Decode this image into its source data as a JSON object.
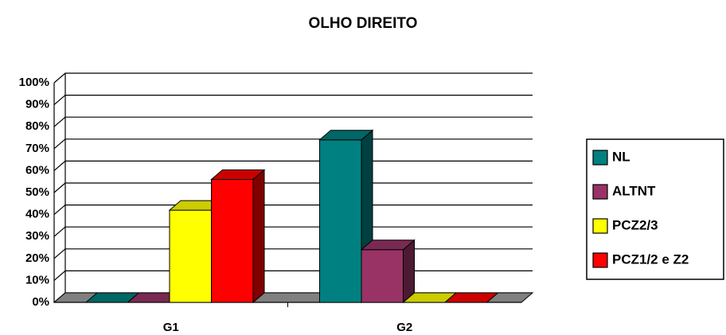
{
  "chart_data": {
    "type": "bar3d",
    "title": "OLHO DIREITO",
    "categories": [
      "G1",
      "G2"
    ],
    "series": [
      {
        "name": "NL",
        "color": "#008080",
        "values": [
          0,
          74
        ]
      },
      {
        "name": "ALTNT",
        "color": "#993366",
        "values": [
          0,
          24
        ]
      },
      {
        "name": "PCZ2/3",
        "color": "#ffff00",
        "values": [
          42,
          0
        ]
      },
      {
        "name": "PCZ1/2 e Z2",
        "color": "#ff0000",
        "values": [
          56,
          0
        ]
      }
    ],
    "ylim": [
      0,
      100
    ],
    "yticks": [
      {
        "value": 0,
        "label": "0%"
      },
      {
        "value": 10,
        "label": "10%"
      },
      {
        "value": 20,
        "label": "20%"
      },
      {
        "value": 30,
        "label": "30%"
      },
      {
        "value": 40,
        "label": "40%"
      },
      {
        "value": 50,
        "label": "50%"
      },
      {
        "value": 60,
        "label": "60%"
      },
      {
        "value": 70,
        "label": "70%"
      },
      {
        "value": 80,
        "label": "80%"
      },
      {
        "value": 90,
        "label": "90%"
      },
      {
        "value": 100,
        "label": "100%"
      }
    ],
    "grid": true,
    "legend": "right"
  }
}
